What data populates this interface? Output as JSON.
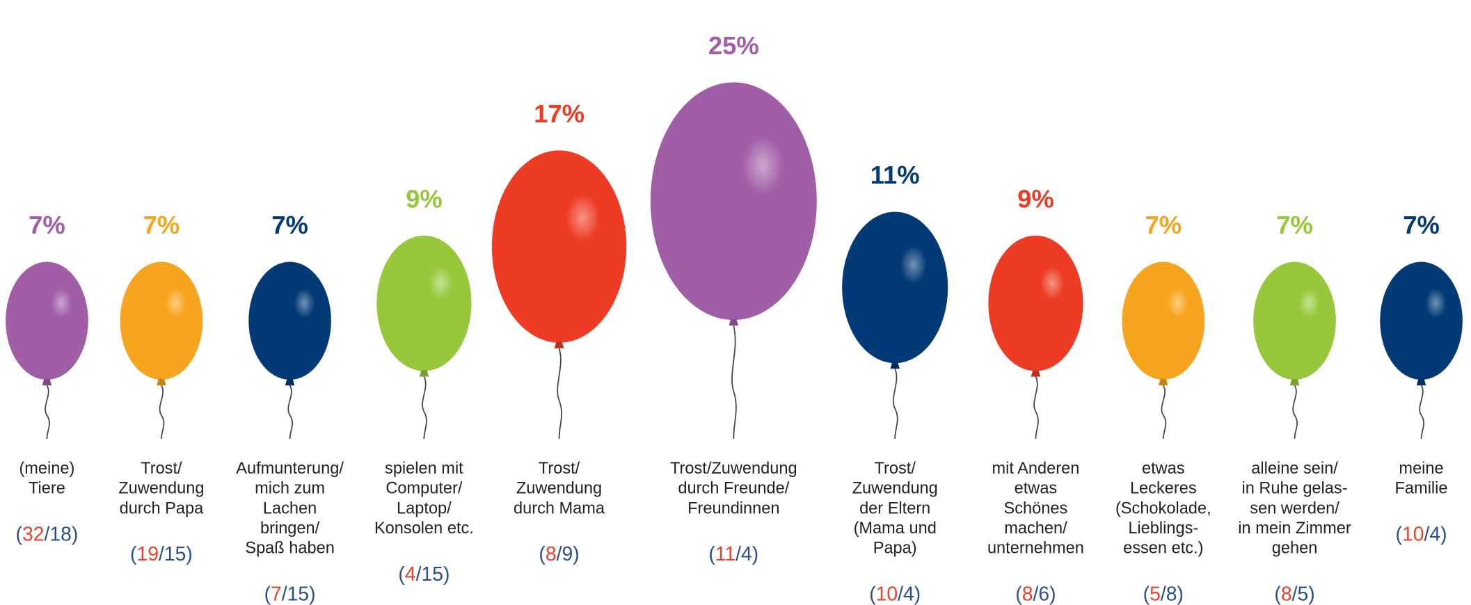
{
  "chart_data": {
    "type": "balloon",
    "categories": [
      [
        "(meine)",
        "Tiere"
      ],
      [
        "Trost/",
        "Zuwendung",
        "durch Papa"
      ],
      [
        "Aufmunterung/",
        "mich zum",
        "Lachen",
        "bringen/",
        "Spaß haben"
      ],
      [
        "spielen mit",
        "Computer/",
        "Laptop/",
        "Konsolen etc."
      ],
      [
        "Trost/",
        "Zuwendung",
        "durch Mama"
      ],
      [
        "Trost/Zuwendung",
        "durch Freunde/",
        "Freundinnen"
      ],
      [
        "Trost/",
        "Zuwendung",
        "der Eltern",
        "(Mama und",
        "Papa)"
      ],
      [
        "mit Anderen",
        "etwas",
        "Schönes",
        "machen/",
        "unternehmen"
      ],
      [
        "etwas",
        "Leckeres",
        "(Schokolade,",
        "Lieblings-",
        "essen etc.)"
      ],
      [
        "alleine sein/",
        "in Ruhe gelas-",
        "sen werden/",
        "in mein Zimmer",
        "gehen"
      ],
      [
        "meine",
        "Familie"
      ]
    ],
    "values": [
      7,
      7,
      7,
      9,
      17,
      25,
      11,
      9,
      7,
      7,
      7
    ],
    "value_labels": [
      "7%",
      "7%",
      "7%",
      "9%",
      "17%",
      "25%",
      "11%",
      "9%",
      "7%",
      "7%",
      "7%"
    ],
    "colors": [
      "#a05ea6",
      "#f7a51e",
      "#023a75",
      "#97c83c",
      "#ee3b24",
      "#a05ea6",
      "#023a75",
      "#ee3b24",
      "#f7a51e",
      "#97c83c",
      "#023a75"
    ],
    "counts_first": [
      32,
      19,
      7,
      4,
      8,
      11,
      10,
      8,
      5,
      8,
      10
    ],
    "counts_second": [
      18,
      15,
      15,
      15,
      9,
      4,
      4,
      6,
      8,
      5,
      4
    ],
    "counts_first_color": "#e8412c",
    "counts_second_color": "#2a4f8a",
    "count_format": {
      "open": "(",
      "separator": "/",
      "close": ")"
    }
  }
}
